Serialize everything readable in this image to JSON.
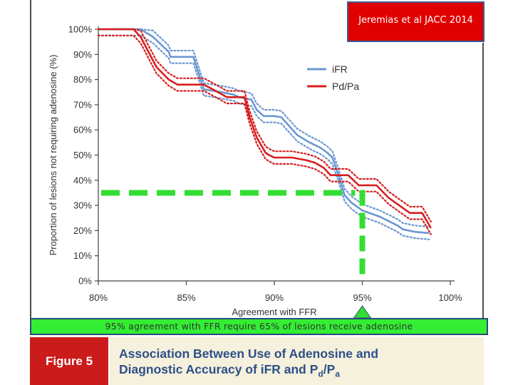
{
  "citation": "Jeremias et al JACC 2014",
  "callout": "95% agreement with FFR require 65% of lesions receive adenosine",
  "figure": {
    "label": "Figure 5",
    "title_line1": "Association Between Use of Adenosine and",
    "title_line2_prefix": "Diagnostic Accuracy of iFR and P",
    "title_sub_d": "d",
    "title_slash": "/P",
    "title_sub_a": "a"
  },
  "colors": {
    "ifr": "#6a97d2",
    "pdpa": "#d81e1e",
    "highlight": "#33dd33",
    "caption_bg": "#f6f1dc",
    "caption_title": "#2d4f8a"
  },
  "chart_data": {
    "type": "line",
    "title": "",
    "xlabel": "Agreement  with FFR",
    "ylabel": "Proportion of lesions not requiring adenosine (%)",
    "xlim": [
      80,
      100
    ],
    "ylim": [
      0,
      100
    ],
    "xticks": [
      "80%",
      "85%",
      "90%",
      "95%",
      "100%"
    ],
    "xtick_values": [
      80,
      85,
      90,
      95,
      100
    ],
    "yticks": [
      "0%",
      "10%",
      "20%",
      "30%",
      "40%",
      "50%",
      "60%",
      "70%",
      "80%",
      "90%",
      "100%"
    ],
    "ytick_values": [
      0,
      10,
      20,
      30,
      40,
      50,
      60,
      70,
      80,
      90,
      100
    ],
    "legend_position": "top-right",
    "series": [
      {
        "name": "iFR",
        "x": [
          80,
          82,
          82.4,
          83.1,
          84,
          84.1,
          85,
          85.4,
          86,
          86.1,
          87,
          87.7,
          88,
          88.7,
          89,
          89.4,
          90,
          90.4,
          91.3,
          92,
          92.6,
          93,
          93.3,
          93.6,
          94,
          94.4,
          95,
          96,
          97,
          97.3,
          98,
          98.8
        ],
        "y": [
          100,
          100,
          100,
          97,
          91,
          89,
          89,
          89,
          76,
          76,
          75,
          74,
          73,
          72,
          68,
          65.5,
          65.5,
          65,
          58,
          55,
          53,
          51,
          49,
          43,
          34,
          31,
          28,
          25.5,
          22,
          20.5,
          19.5,
          19
        ],
        "band_offset": 2.5
      },
      {
        "name": "Pd/Pa",
        "x": [
          80,
          82,
          82.4,
          83.3,
          84,
          84.5,
          85.3,
          86,
          86.8,
          87.3,
          88.3,
          88.6,
          89,
          89.5,
          89.7,
          90,
          90.4,
          91,
          91.8,
          92.3,
          92.8,
          93.2,
          93.8,
          94.2,
          94.8,
          95.8,
          96.5,
          97.7,
          98.4,
          98.9
        ],
        "y": [
          100,
          100,
          97,
          85,
          80,
          78,
          78,
          78,
          75,
          73,
          73,
          65,
          57,
          51,
          50,
          49,
          49,
          49,
          48,
          47,
          45,
          42,
          42,
          42,
          38,
          38,
          33,
          27,
          27,
          21
        ],
        "band_offset": 2.5
      }
    ],
    "annotation": {
      "type": "threshold-guide",
      "x": 95,
      "y": 35
    }
  }
}
